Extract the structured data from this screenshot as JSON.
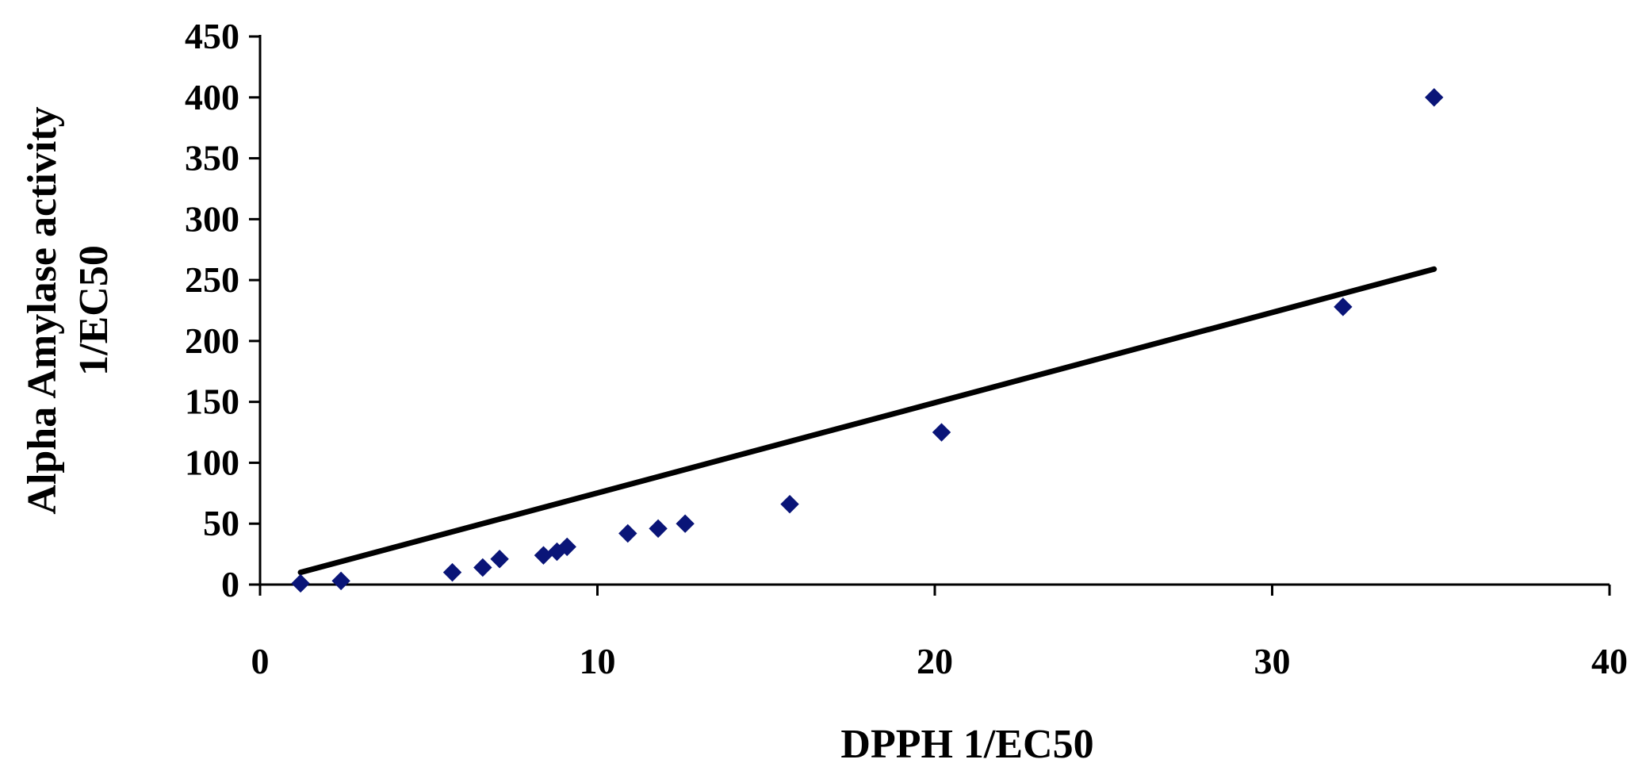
{
  "chart_data": {
    "type": "scatter",
    "xlabel": "DPPH 1/EC50",
    "ylabel_lines": [
      "Alpha Amylase activity",
      "1/EC50"
    ],
    "xlim": [
      0,
      40
    ],
    "ylim": [
      0,
      450
    ],
    "x_ticks": [
      0,
      10,
      20,
      30,
      40
    ],
    "y_ticks": [
      0,
      50,
      100,
      150,
      200,
      250,
      300,
      350,
      400,
      450
    ],
    "x_tick_labels": [
      "0",
      "10",
      "20",
      "30",
      "40"
    ],
    "y_tick_labels": [
      "0",
      "50",
      "100",
      "150",
      "200",
      "250",
      "300",
      "350",
      "400",
      "450"
    ],
    "grid": false,
    "legend": "none",
    "series": [
      {
        "marker": "diamond",
        "color": "#0a1578",
        "points": [
          {
            "x": 1.2,
            "y": 1
          },
          {
            "x": 2.4,
            "y": 3
          },
          {
            "x": 5.7,
            "y": 10
          },
          {
            "x": 6.6,
            "y": 14
          },
          {
            "x": 7.1,
            "y": 21
          },
          {
            "x": 8.4,
            "y": 24
          },
          {
            "x": 8.8,
            "y": 27
          },
          {
            "x": 9.1,
            "y": 31
          },
          {
            "x": 10.9,
            "y": 42
          },
          {
            "x": 11.8,
            "y": 46
          },
          {
            "x": 12.6,
            "y": 50
          },
          {
            "x": 15.7,
            "y": 66
          },
          {
            "x": 20.2,
            "y": 125
          },
          {
            "x": 32.1,
            "y": 228
          },
          {
            "x": 34.8,
            "y": 400
          }
        ]
      }
    ],
    "trendline": {
      "type": "linear",
      "color": "#000000",
      "points": [
        {
          "x": 1.2,
          "y": 10
        },
        {
          "x": 34.8,
          "y": 259
        }
      ]
    }
  }
}
